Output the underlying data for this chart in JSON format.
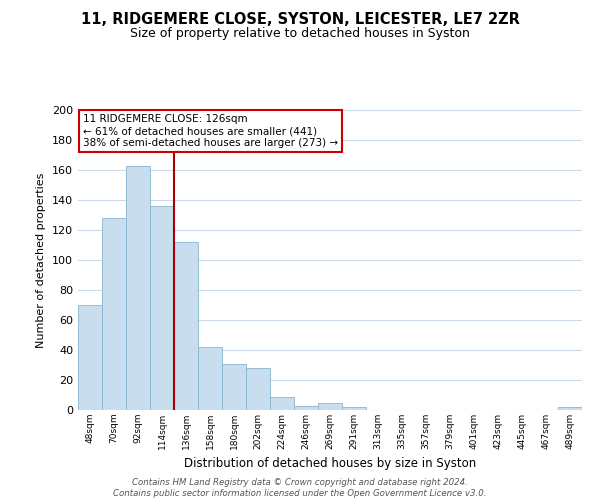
{
  "title": "11, RIDGEMERE CLOSE, SYSTON, LEICESTER, LE7 2ZR",
  "subtitle": "Size of property relative to detached houses in Syston",
  "xlabel": "Distribution of detached houses by size in Syston",
  "ylabel": "Number of detached properties",
  "bar_color": "#c8dded",
  "bar_edge_color": "#8ab4d0",
  "background_color": "#ffffff",
  "grid_color": "#ccdae8",
  "vline_color": "#aa0000",
  "annotation_text_line1": "11 RIDGEMERE CLOSE: 126sqm",
  "annotation_text_line2": "← 61% of detached houses are smaller (441)",
  "annotation_text_line3": "38% of semi-detached houses are larger (273) →",
  "annotation_box_color": "#ffffff",
  "annotation_box_edge": "#cc0000",
  "footer_text": "Contains HM Land Registry data © Crown copyright and database right 2024.\nContains public sector information licensed under the Open Government Licence v3.0.",
  "categories": [
    "48sqm",
    "70sqm",
    "92sqm",
    "114sqm",
    "136sqm",
    "158sqm",
    "180sqm",
    "202sqm",
    "224sqm",
    "246sqm",
    "269sqm",
    "291sqm",
    "313sqm",
    "335sqm",
    "357sqm",
    "379sqm",
    "401sqm",
    "423sqm",
    "445sqm",
    "467sqm",
    "489sqm"
  ],
  "values": [
    70,
    128,
    163,
    136,
    112,
    42,
    31,
    28,
    9,
    3,
    5,
    2,
    0,
    0,
    0,
    0,
    0,
    0,
    0,
    0,
    2
  ],
  "ylim": [
    0,
    200
  ],
  "yticks": [
    0,
    20,
    40,
    60,
    80,
    100,
    120,
    140,
    160,
    180,
    200
  ],
  "vline_pos": 3.5
}
